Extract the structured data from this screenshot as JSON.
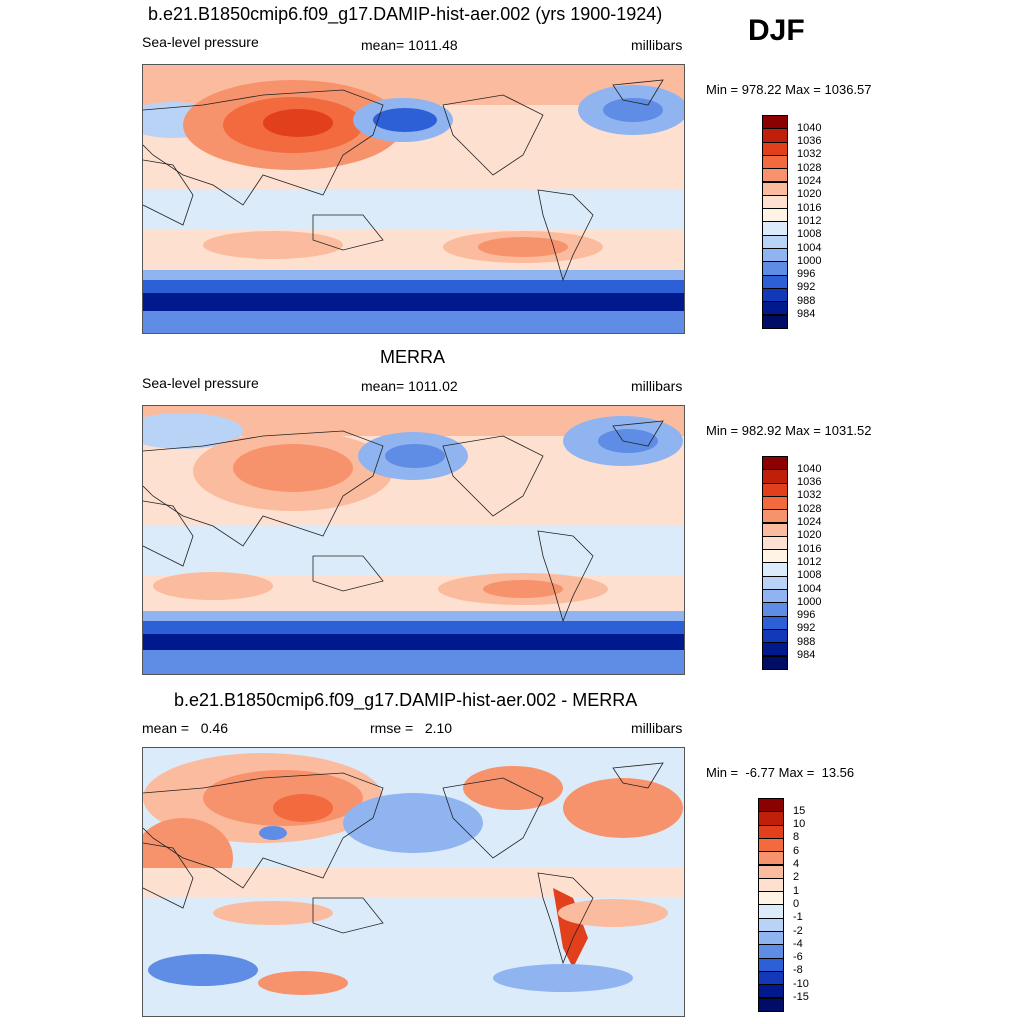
{
  "season": "DJF",
  "panels": [
    {
      "title": "b.e21.B1850cmip6.f09_g17.DAMIP-hist-aer.002 (yrs 1900-1924)",
      "left_label": "Sea-level pressure",
      "center_label": "mean= 1011.48",
      "right_label": "millibars",
      "minmax": "Min = 978.22 Max = 1036.57",
      "colorbar": {
        "labels": [
          "1040",
          "1036",
          "1032",
          "1028",
          "1024",
          "1020",
          "1016",
          "1012",
          "1008",
          "1004",
          "1000",
          "996",
          "992",
          "988",
          "984"
        ],
        "colors": [
          "#8b0000",
          "#c0200a",
          "#e2401c",
          "#f26a3e",
          "#f7936c",
          "#fbbb9e",
          "#fde0cf",
          "#fff3e6",
          "#dcebfa",
          "#b9d3f7",
          "#8fb4f0",
          "#5f8de6",
          "#2d5fd6",
          "#1339b8",
          "#00198c",
          "#000d66"
        ]
      },
      "map_name": "model-slp-map"
    },
    {
      "title": "MERRA",
      "left_label": "Sea-level pressure",
      "center_label": "mean= 1011.02",
      "right_label": "millibars",
      "minmax": "Min = 982.92 Max = 1031.52",
      "colorbar": {
        "labels": [
          "1040",
          "1036",
          "1032",
          "1028",
          "1024",
          "1020",
          "1016",
          "1012",
          "1008",
          "1004",
          "1000",
          "996",
          "992",
          "988",
          "984"
        ],
        "colors": [
          "#8b0000",
          "#c0200a",
          "#e2401c",
          "#f26a3e",
          "#f7936c",
          "#fbbb9e",
          "#fde0cf",
          "#fff3e6",
          "#dcebfa",
          "#b9d3f7",
          "#8fb4f0",
          "#5f8de6",
          "#2d5fd6",
          "#1339b8",
          "#00198c",
          "#000d66"
        ]
      },
      "map_name": "merra-slp-map"
    },
    {
      "title": "b.e21.B1850cmip6.f09_g17.DAMIP-hist-aer.002 - MERRA",
      "left_label": "mean =   0.46",
      "center_label": "rmse =   2.10",
      "right_label": "millibars",
      "minmax": "Min =  -6.77 Max =  13.56",
      "colorbar": {
        "labels": [
          "15",
          "10",
          "8",
          "6",
          "4",
          "2",
          "1",
          "0",
          "-1",
          "-2",
          "-4",
          "-6",
          "-8",
          "-10",
          "-15"
        ],
        "colors": [
          "#8b0000",
          "#c0200a",
          "#e2401c",
          "#f26a3e",
          "#f7936c",
          "#fbbb9e",
          "#fde0cf",
          "#fff3e6",
          "#dcebfa",
          "#b9d3f7",
          "#8fb4f0",
          "#5f8de6",
          "#2d5fd6",
          "#1339b8",
          "#00198c",
          "#000d66"
        ]
      },
      "map_name": "difference-slp-map"
    }
  ]
}
